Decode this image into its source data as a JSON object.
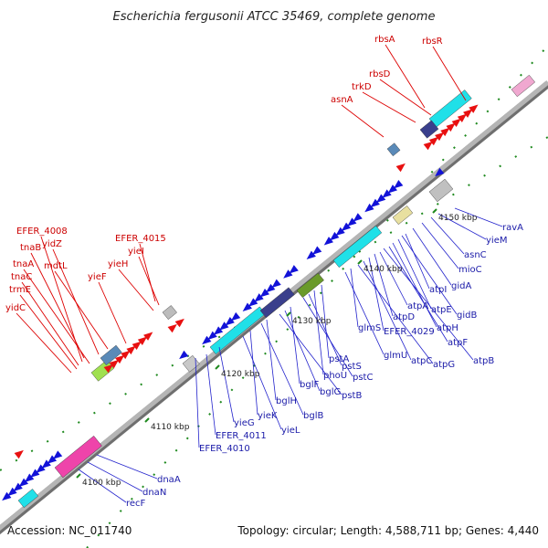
{
  "title": "Escherichia fergusonii ATCC 35469, complete genome",
  "footer": {
    "accession": "Accession: NC_011740",
    "summary": "Topology: circular; Length: 4,588,711 bp; Genes: 4,440"
  },
  "ticks": [
    "4100 kbp",
    "4110 kbp",
    "4120 kbp",
    "4130 kbp",
    "4140 kbp",
    "4150 kbp"
  ],
  "genes_forward": [
    "rbsA",
    "rbsR",
    "rbsD",
    "trkD",
    "asnA",
    "EFER_4008",
    "yidZ",
    "tnaB",
    "mdtL",
    "tnaA",
    "yieF",
    "tnaC",
    "trmE",
    "yidC",
    "EFER_4015",
    "yieI",
    "yieH"
  ],
  "genes_reverse": [
    "ravA",
    "yieM",
    "asnC",
    "mioC",
    "gidA",
    "atpI",
    "gidB",
    "atpE",
    "atpH",
    "atpF",
    "atpB",
    "atpA",
    "atpD",
    "EFER_4029",
    "atpC",
    "atpG",
    "glmS",
    "glmU",
    "pstA",
    "phoU",
    "pstS",
    "pstC",
    "bglF",
    "bglG",
    "pstB",
    "bglH",
    "bglB",
    "yieK",
    "yieL",
    "yieG",
    "EFER_4011",
    "EFER_4010",
    "dnaA",
    "dnaN",
    "recF"
  ],
  "colors": {
    "forward": "#e81010",
    "reverse": "#1212d8",
    "tick": "#1f8a1f",
    "backbone": "#9a9a9a",
    "cds_cyan": "#20e0e8",
    "cds_navy": "#3a3f8c",
    "cds_olive": "#6a9a2a",
    "cds_pink": "#ee44aa",
    "cds_steel": "#5a8ab8"
  }
}
